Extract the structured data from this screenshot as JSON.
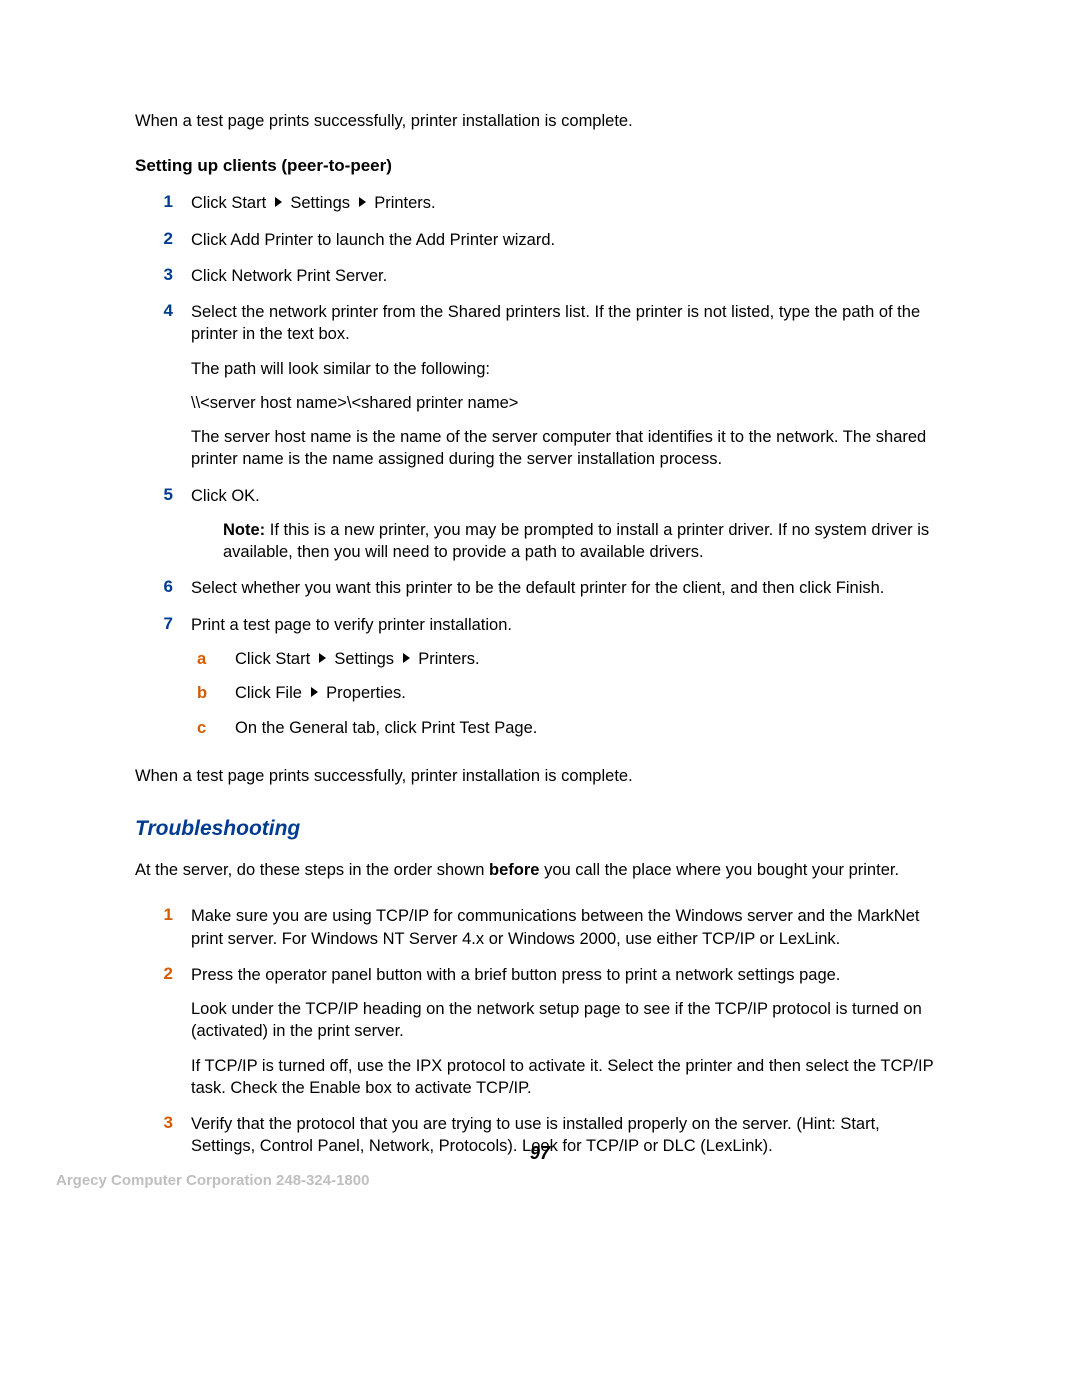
{
  "intro": "When a test page prints successfully, printer installation is complete.",
  "section1_heading": "Setting up clients (peer-to-peer)",
  "s1": {
    "step1_a": "Click Start",
    "step1_b": "Settings",
    "step1_c": "Printers.",
    "step2": "Click Add Printer to launch the Add Printer wizard.",
    "step3": "Click Network Print Server.",
    "step4_a": "Select the network printer from the Shared printers list. If the printer is not listed, type the path of the printer in the text box.",
    "step4_b": "The path will look similar to the following:",
    "step4_c": "\\\\<server host name>\\<shared printer name>",
    "step4_d": "The server host name is the name of the server computer that identifies it to the network. The shared printer name is the name assigned during the server installation process.",
    "step5": "Click OK.",
    "note_label": "Note:",
    "note_text": "If this is a new printer, you may be prompted to install a printer driver. If no system driver is available, then you will need to provide a path to available drivers.",
    "step6": "Select whether you want this printer to be the default printer for the client, and then click Finish.",
    "step7": "Print a test page to verify printer installation.",
    "sub_a_1": "Click Start",
    "sub_a_2": "Settings",
    "sub_a_3": "Printers.",
    "sub_b_1": "Click File",
    "sub_b_2": "Properties.",
    "sub_c": "On the General tab, click Print Test Page."
  },
  "closing1": "When a test page prints successfully, printer installation is complete.",
  "troubleshooting_heading": "Troubleshooting",
  "ts_intro_a": "At the server, do these steps in the order shown ",
  "ts_intro_bold": "before",
  "ts_intro_b": " you call the place where you bought your printer.",
  "ts": {
    "step1": "Make sure you are using TCP/IP for communications between the Windows server and the MarkNet print server. For Windows NT Server 4.x or Windows 2000, use either TCP/IP or LexLink.",
    "step2_a": "Press the operator panel button with a brief button press to print a network settings page.",
    "step2_b": "Look under the TCP/IP heading on the network setup page to see if the TCP/IP protocol is turned on (activated) in the print server.",
    "step2_c": "If TCP/IP is turned off, use the IPX protocol to activate it. Select the printer and then select the TCP/IP task. Check the Enable box to activate TCP/IP.",
    "step3": "Verify that the protocol that you are trying to use is installed properly on the server. (Hint: Start, Settings, Control Panel, Network, Protocols). Look for TCP/IP or DLC (LexLink)."
  },
  "nums": {
    "n1": "1",
    "n2": "2",
    "n3": "3",
    "n4": "4",
    "n5": "5",
    "n6": "6",
    "n7": "7",
    "a": "a",
    "b": "b",
    "c": "c"
  },
  "page_number": "97",
  "footer": "Argecy Computer Corporation 248-324-1800"
}
